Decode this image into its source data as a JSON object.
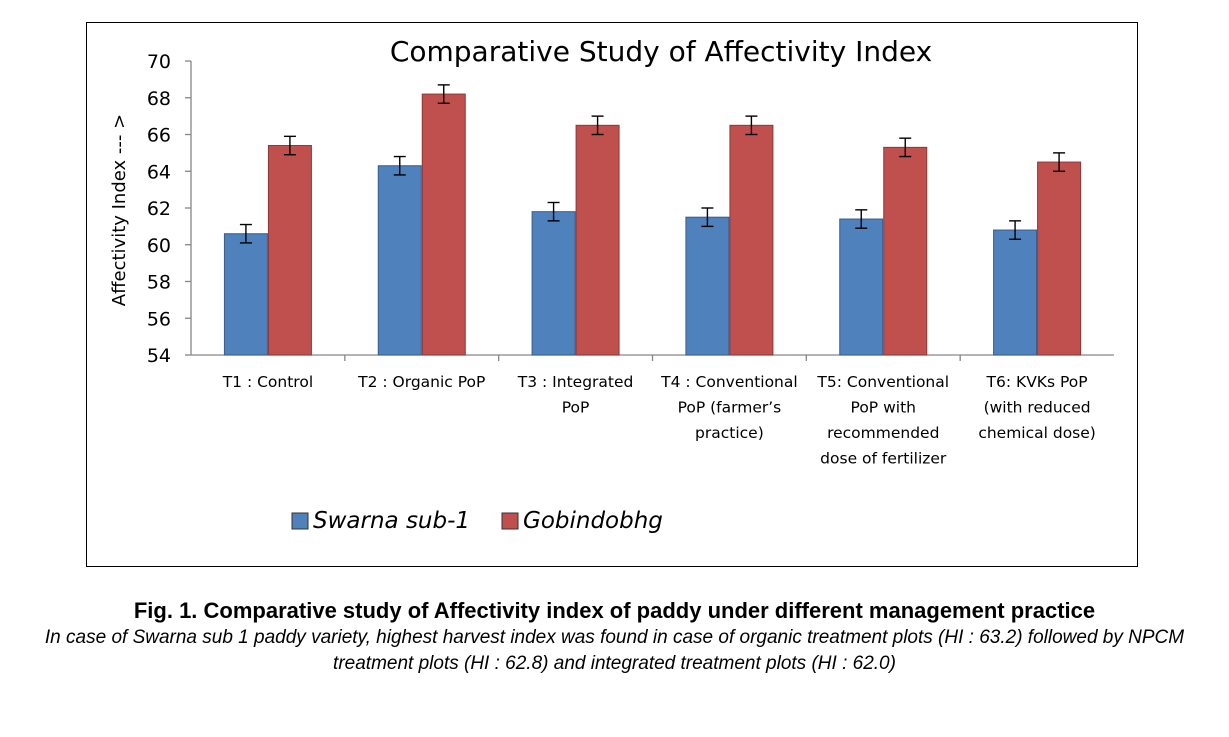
{
  "chart_data": {
    "type": "bar",
    "title": "Comparative Study of Affectivity Index",
    "ylabel": "Affectivity Index --- >",
    "xlabel": "",
    "ylim": [
      54,
      70
    ],
    "yticks": [
      54,
      56,
      58,
      60,
      62,
      64,
      66,
      68,
      70
    ],
    "grid": false,
    "legend_position": "bottom-left",
    "categories": [
      [
        "T1 : Control"
      ],
      [
        "T2 : Organic PoP"
      ],
      [
        "T3 : Integrated",
        "PoP"
      ],
      [
        "T4 : Conventional",
        "PoP (farmer’s",
        "practice)"
      ],
      [
        "T5: Conventional",
        "PoP with",
        "recommended",
        "dose of fertilizer"
      ],
      [
        "T6: KVKs PoP",
        "(with reduced",
        "chemical dose)"
      ]
    ],
    "series": [
      {
        "name": "Swarna sub-1",
        "color": "#4f81bd",
        "values": [
          60.6,
          64.3,
          61.8,
          61.5,
          61.4,
          60.8
        ],
        "error": [
          0.5,
          0.5,
          0.5,
          0.5,
          0.5,
          0.5
        ]
      },
      {
        "name": "Gobindobhg",
        "color": "#c0504d",
        "values": [
          65.4,
          68.2,
          66.5,
          66.5,
          65.3,
          64.5
        ],
        "error": [
          0.5,
          0.5,
          0.5,
          0.5,
          0.5,
          0.5
        ]
      }
    ]
  },
  "caption": {
    "title": "Fig. 1. Comparative study of Affectivity index of paddy under different management practice",
    "note": "In case of Swarna sub 1 paddy variety, highest  harvest index was found in case of organic treatment plots (HI : 63.2) followed by NPCM treatment plots (HI : 62.8) and integrated treatment plots (HI : 62.0)"
  }
}
